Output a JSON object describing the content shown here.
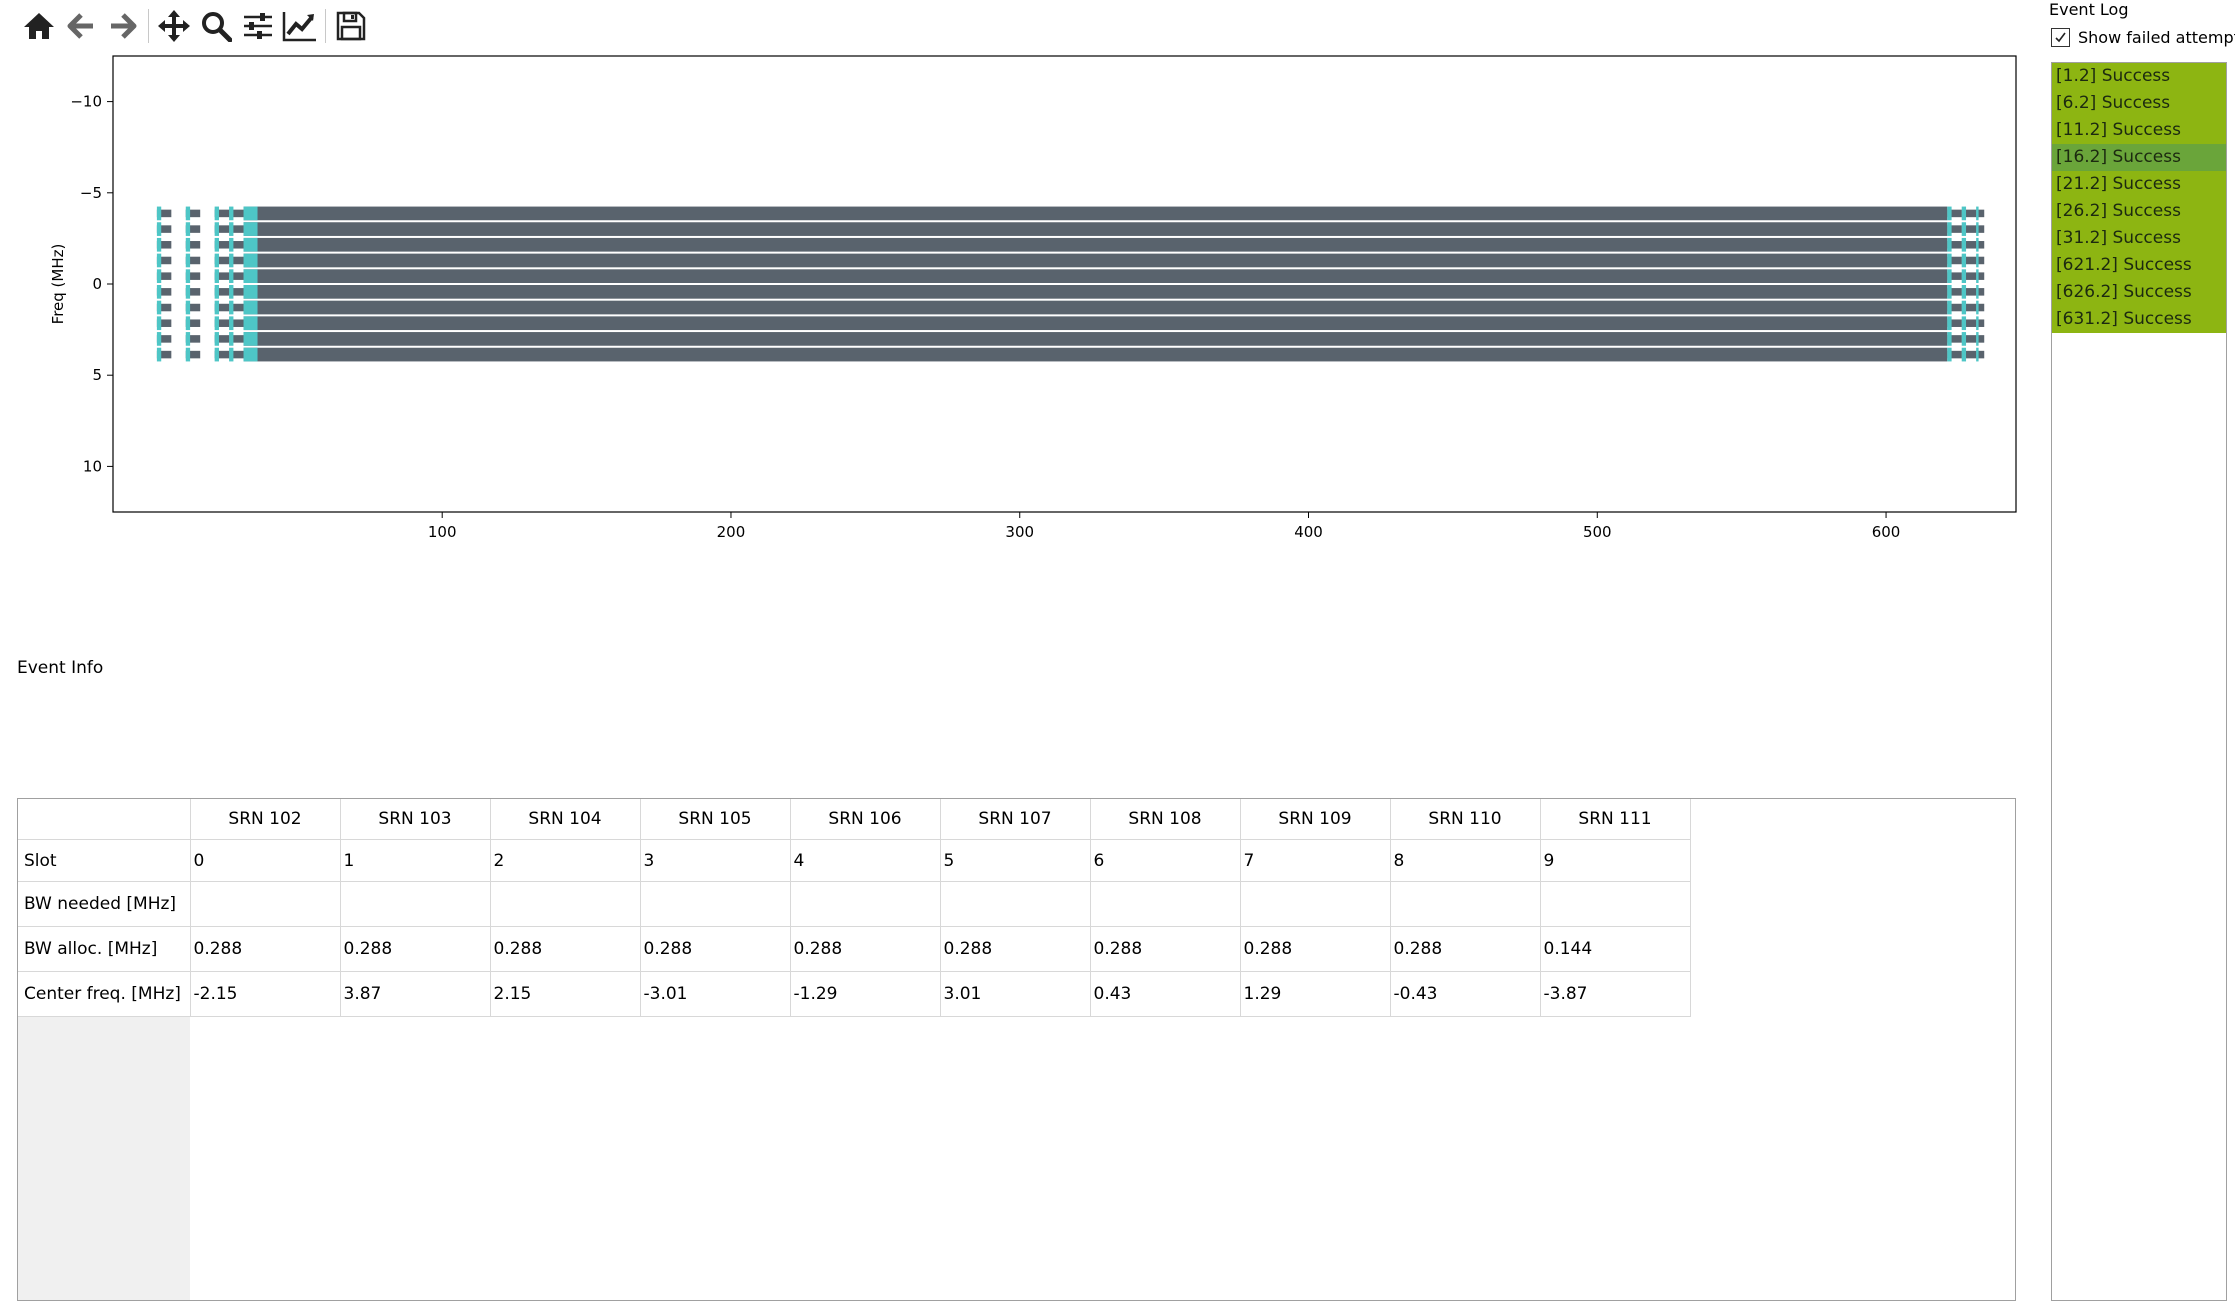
{
  "toolbar": {
    "items": [
      {
        "name": "home-button",
        "icon": "home-icon"
      },
      {
        "name": "back-button",
        "icon": "arrow-left-icon"
      },
      {
        "name": "forward-button",
        "icon": "arrow-right-icon"
      },
      {
        "sep": true
      },
      {
        "name": "pan-button",
        "icon": "move-icon"
      },
      {
        "name": "zoom-button",
        "icon": "magnifier-icon"
      },
      {
        "name": "configure-subplots-button",
        "icon": "sliders-icon"
      },
      {
        "name": "edit-axes-button",
        "icon": "line-chart-icon"
      },
      {
        "sep": true
      },
      {
        "name": "save-button",
        "icon": "floppy-disk-icon"
      }
    ]
  },
  "chart_data": {
    "type": "gantt",
    "xlabel": "",
    "ylabel": "Freq (MHz)",
    "xlim": [
      -14,
      645
    ],
    "ylim": [
      12.5,
      -12.5
    ],
    "y_inverted": true,
    "x_ticks": [
      100,
      200,
      300,
      400,
      500,
      600
    ],
    "y_ticks": [
      -10,
      -5,
      0,
      5,
      10
    ],
    "y_tick_labels": [
      "−10",
      "−5",
      "0",
      "5",
      "10"
    ],
    "colors": {
      "main": "#59636d",
      "edge": "#4ec6c6"
    },
    "series": [
      {
        "center_mhz": -3.87,
        "bw_mhz": 0.144
      },
      {
        "center_mhz": -3.01,
        "bw_mhz": 0.288
      },
      {
        "center_mhz": -2.15,
        "bw_mhz": 0.288
      },
      {
        "center_mhz": -1.29,
        "bw_mhz": 0.288
      },
      {
        "center_mhz": -0.43,
        "bw_mhz": 0.288
      },
      {
        "center_mhz": 0.43,
        "bw_mhz": 0.288
      },
      {
        "center_mhz": 1.29,
        "bw_mhz": 0.288
      },
      {
        "center_mhz": 2.15,
        "bw_mhz": 0.288
      },
      {
        "center_mhz": 3.01,
        "bw_mhz": 0.288
      },
      {
        "center_mhz": 3.87,
        "bw_mhz": 0.288
      }
    ],
    "time_ranges": [
      [
        1.2,
        6.2
      ],
      [
        11.2,
        16.2
      ],
      [
        21.2,
        26.2
      ],
      [
        26.2,
        31.2
      ],
      [
        31.2,
        621.2
      ],
      [
        621.2,
        626.2
      ],
      [
        626.2,
        631.2
      ],
      [
        631.2,
        634
      ]
    ],
    "grid": false
  },
  "event_info": {
    "label": "Event Info"
  },
  "table": {
    "columns": [
      "SRN 102",
      "SRN 103",
      "SRN 104",
      "SRN 105",
      "SRN 106",
      "SRN 107",
      "SRN 108",
      "SRN 109",
      "SRN 110",
      "SRN 111"
    ],
    "rows": [
      {
        "name": "Slot",
        "values": [
          "0",
          "1",
          "2",
          "3",
          "4",
          "5",
          "6",
          "7",
          "8",
          "9"
        ]
      },
      {
        "name": "BW needed [MHz]",
        "values": [
          "",
          "",
          "",
          "",
          "",
          "",
          "",
          "",
          "",
          ""
        ]
      },
      {
        "name": "BW alloc. [MHz]",
        "values": [
          "0.288",
          "0.288",
          "0.288",
          "0.288",
          "0.288",
          "0.288",
          "0.288",
          "0.288",
          "0.288",
          "0.144"
        ]
      },
      {
        "name": "Center freq. [MHz]",
        "values": [
          "-2.15",
          "3.87",
          "2.15",
          "-3.01",
          "-1.29",
          "3.01",
          "0.43",
          "1.29",
          "-0.43",
          "-3.87"
        ]
      }
    ]
  },
  "event_log": {
    "title": "Event Log",
    "show_failed": {
      "label": "Show failed attempts",
      "checked": true
    },
    "entries": [
      "[1.2] Success",
      "[6.2] Success",
      "[11.2] Success",
      "[16.2] Success",
      "[21.2] Success",
      "[26.2] Success",
      "[31.2] Success",
      "[621.2] Success",
      "[626.2] Success",
      "[631.2] Success"
    ],
    "selected_index": 3
  }
}
